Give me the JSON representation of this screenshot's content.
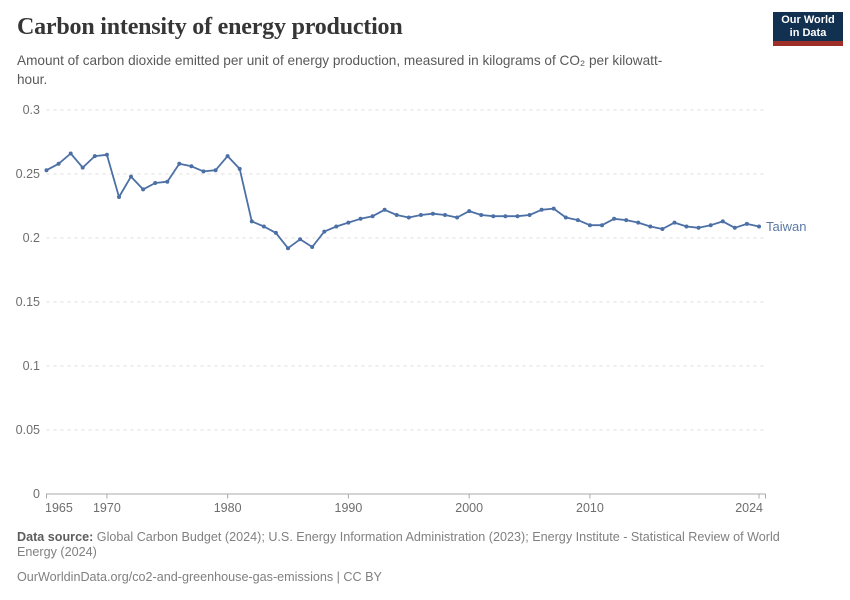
{
  "header": {
    "title": "Carbon intensity of energy production",
    "subtitle": "Amount of carbon dioxide emitted per unit of energy production, measured in kilograms of CO₂ per kilowatt-hour.",
    "logo": {
      "line1": "Our World",
      "line2": "in Data",
      "bg_color": "#12304f",
      "stripe_color": "#9e2f28"
    }
  },
  "chart_data": {
    "type": "line",
    "title": "Carbon intensity of energy production",
    "ylabel": "",
    "xlabel": "",
    "xlim": [
      1965,
      2024
    ],
    "ylim": [
      0,
      0.3
    ],
    "grid": "horizontal-dashed",
    "legend_position": "end-of-line-label",
    "x_ticks": [
      1965,
      1970,
      1980,
      1990,
      2000,
      2010,
      2024
    ],
    "y_ticks": [
      0,
      0.05,
      0.1,
      0.15,
      0.2,
      0.25,
      0.3
    ],
    "y_tick_labels": [
      "0",
      "0.05",
      "0.1",
      "0.15",
      "0.2",
      "0.25",
      "0.3"
    ],
    "series": [
      {
        "name": "Taiwan",
        "color": "#4C70A6",
        "x": [
          1965,
          1966,
          1967,
          1968,
          1969,
          1970,
          1971,
          1972,
          1973,
          1974,
          1975,
          1976,
          1977,
          1978,
          1979,
          1980,
          1981,
          1982,
          1983,
          1984,
          1985,
          1986,
          1987,
          1988,
          1989,
          1990,
          1991,
          1992,
          1993,
          1994,
          1995,
          1996,
          1997,
          1998,
          1999,
          2000,
          2001,
          2002,
          2003,
          2004,
          2005,
          2006,
          2007,
          2008,
          2009,
          2010,
          2011,
          2012,
          2013,
          2014,
          2015,
          2016,
          2017,
          2018,
          2019,
          2020,
          2021,
          2022,
          2023,
          2024
        ],
        "values": [
          0.253,
          0.258,
          0.266,
          0.255,
          0.264,
          0.265,
          0.232,
          0.248,
          0.238,
          0.243,
          0.244,
          0.258,
          0.256,
          0.252,
          0.253,
          0.264,
          0.254,
          0.213,
          0.209,
          0.204,
          0.192,
          0.199,
          0.193,
          0.205,
          0.209,
          0.212,
          0.215,
          0.217,
          0.222,
          0.218,
          0.216,
          0.218,
          0.219,
          0.218,
          0.216,
          0.221,
          0.218,
          0.217,
          0.217,
          0.217,
          0.218,
          0.222,
          0.223,
          0.216,
          0.214,
          0.21,
          0.21,
          0.215,
          0.214,
          0.212,
          0.209,
          0.207,
          0.212,
          0.209,
          0.208,
          0.21,
          0.213,
          0.208,
          0.211,
          0.209
        ]
      }
    ]
  },
  "colors": {
    "line": "#4C70A6",
    "entity_label": "#5b79a5",
    "gridline": "#dcdcdc",
    "axis": "#a8a8a8",
    "tick_label": "#6e6e6e"
  },
  "footer": {
    "datasource_label": "Data source:",
    "datasource_text": "Global Carbon Budget (2024); U.S. Energy Information Administration (2023); Energy Institute - Statistical Review of World Energy (2024)",
    "license_line": "OurWorldinData.org/co2-and-greenhouse-gas-emissions | CC BY"
  }
}
